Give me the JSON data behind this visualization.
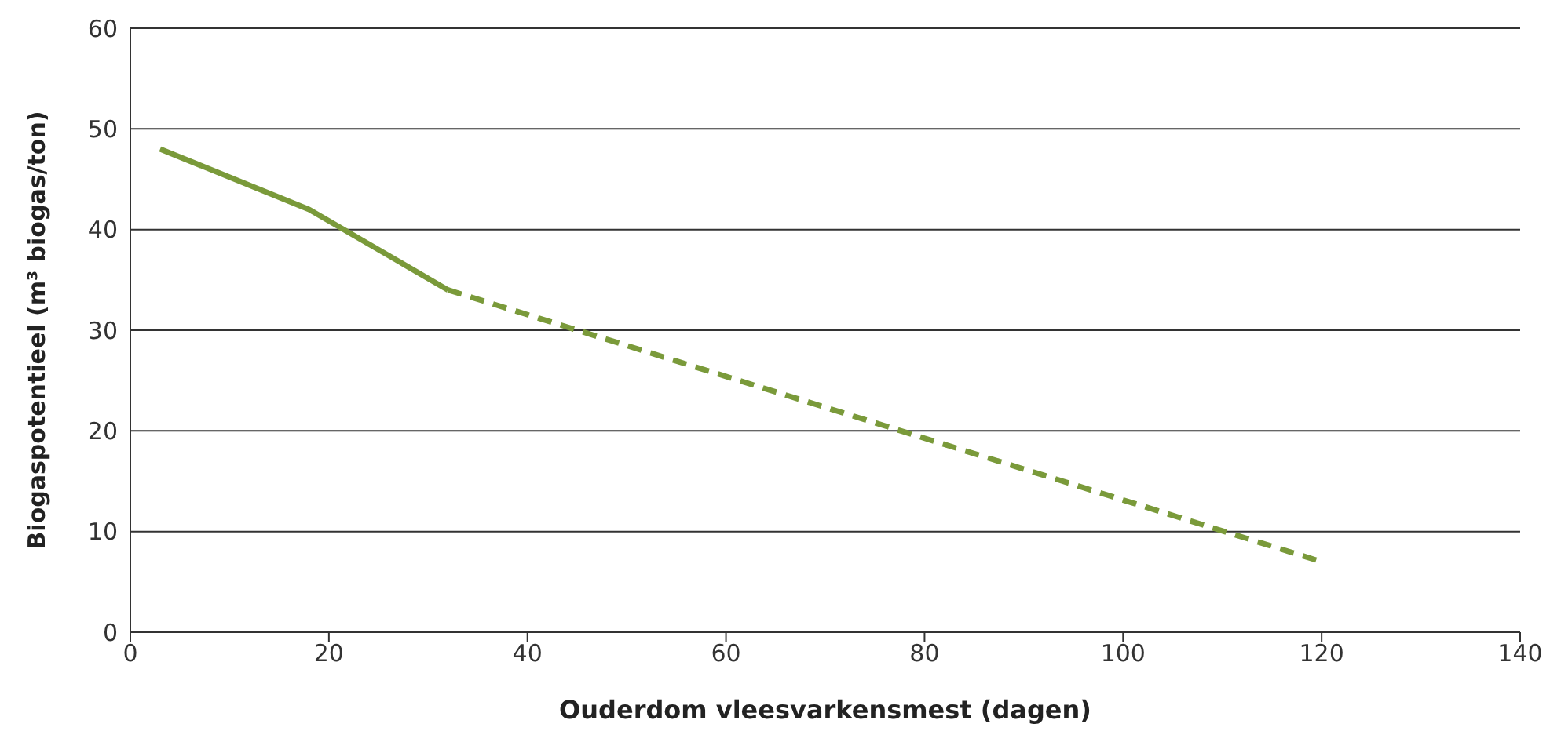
{
  "chart_data": {
    "type": "line",
    "xlabel": "Ouderdom vleesvarkensmest (dagen)",
    "ylabel": "Biogaspotentieel (m³ biogas/ton)",
    "series": [
      {
        "color": "#7a9a3a",
        "x": [
          3,
          18,
          32
        ],
        "values": [
          48,
          42,
          34
        ],
        "line_style": "solid"
      },
      {
        "color": "#7a9a3a",
        "x": [
          32,
          120
        ],
        "values": [
          34,
          7
        ],
        "line_style": "dashed"
      }
    ],
    "xlim": [
      0,
      140
    ],
    "xticks": [
      0,
      20,
      40,
      60,
      80,
      100,
      120,
      140
    ],
    "ylim": [
      0,
      60
    ],
    "yticks": [
      0,
      10,
      20,
      30,
      40,
      50,
      60
    ],
    "grid": "y",
    "marker": "none",
    "legend": false
  }
}
